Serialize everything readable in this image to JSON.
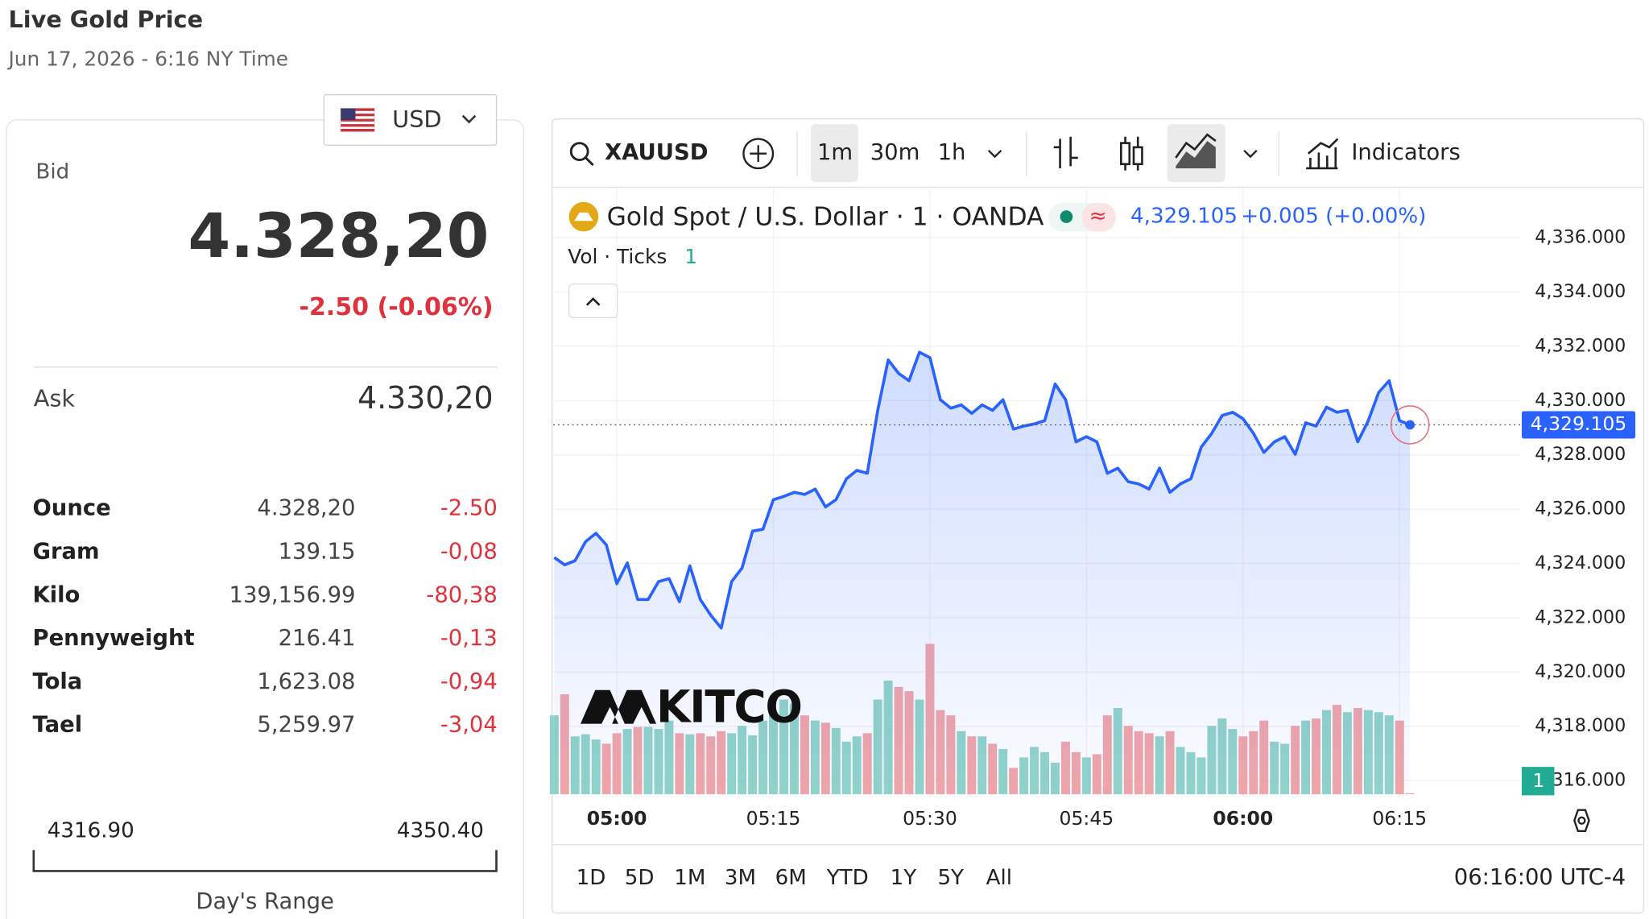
{
  "header": {
    "title": "Live Gold Price",
    "subtitle": "Jun 17, 2026 - 6:16 NY Time"
  },
  "currency": "USD",
  "bid": {
    "label": "Bid",
    "value": "4.328,20",
    "change": "-2.50 (-0.06%)"
  },
  "ask": {
    "label": "Ask",
    "value": "4.330,20"
  },
  "table": {
    "rows": [
      [
        "Ounce",
        "4.328,20",
        "-2.50"
      ],
      [
        "Gram",
        "139.15",
        "-0,08"
      ],
      [
        "Kilo",
        "139,156.99",
        "-80,38"
      ],
      [
        "Pennyweight",
        "216.41",
        "-0,13"
      ],
      [
        "Tola",
        "1,623.08",
        "-0,94"
      ],
      [
        "Tael",
        "5,259.97",
        "-3,04"
      ]
    ]
  },
  "range": {
    "low": "4316.90",
    "high": "4350.40",
    "label": "Day's Range"
  },
  "toolbar": {
    "symbol": "XAUUSD",
    "intervals": [
      "1m",
      "30m",
      "1h"
    ],
    "indicators": "Indicators"
  },
  "ranges": [
    "1D",
    "5D",
    "1M",
    "3M",
    "6M",
    "YTD",
    "1Y",
    "5Y",
    "All"
  ],
  "clock": "06:16:00 UTC-4",
  "watermark": "KITCO",
  "chart_data": {
    "type": "line",
    "x": [
      "04:54",
      "04:55",
      "04:56",
      "04:57",
      "04:58",
      "04:59",
      "05:00",
      "05:01",
      "05:02",
      "05:03",
      "05:04",
      "05:05",
      "05:06",
      "05:07",
      "05:08",
      "05:09",
      "05:10",
      "05:11",
      "05:12",
      "05:13",
      "05:14",
      "05:15",
      "05:16",
      "05:17",
      "05:18",
      "05:19",
      "05:20",
      "05:21",
      "05:22",
      "05:23",
      "05:24",
      "05:25",
      "05:26",
      "05:27",
      "05:28",
      "05:29",
      "05:30",
      "05:31",
      "05:32",
      "05:33",
      "05:34",
      "05:35",
      "05:36",
      "05:37",
      "05:38",
      "05:39",
      "05:40",
      "05:41",
      "05:42",
      "05:43",
      "05:44",
      "05:45",
      "05:46",
      "05:47",
      "05:48",
      "05:49",
      "05:50",
      "05:51",
      "05:52",
      "05:53",
      "05:54",
      "05:55",
      "05:56",
      "05:57",
      "05:58",
      "05:59",
      "06:00",
      "06:01",
      "06:02",
      "06:03",
      "06:04",
      "06:05",
      "06:06",
      "06:07",
      "06:08",
      "06:09",
      "06:10",
      "06:11",
      "06:12",
      "06:13",
      "06:14",
      "06:15",
      "06:16"
    ],
    "xlim": [
      "04:54",
      "06:26"
    ],
    "xticks": [
      "05:00",
      "05:15",
      "05:30",
      "05:45",
      "06:00",
      "06:15"
    ],
    "ylim": [
      4315.42,
      4337.78
    ],
    "yticks": [
      {
        "value": 4316,
        "label": "4,316.000"
      },
      {
        "value": 4318,
        "label": "4,318.000"
      },
      {
        "value": 4320,
        "label": "4,320.000"
      },
      {
        "value": 4322,
        "label": "4,322.000"
      },
      {
        "value": 4324,
        "label": "4,324.000"
      },
      {
        "value": 4326,
        "label": "4,326.000"
      },
      {
        "value": 4328,
        "label": "4,328.000"
      },
      {
        "value": 4330,
        "label": "4,330.000"
      },
      {
        "value": 4332,
        "label": "4,332.000"
      },
      {
        "value": 4334,
        "label": "4,334.000"
      },
      {
        "value": 4336,
        "label": "4,336.000"
      }
    ],
    "grid": true,
    "last_label": "4,329.105",
    "change_label": "+0.005 (+0.00%)",
    "series": [
      {
        "name": "Gold Spot / U.S. Dollar · 1 · OANDA",
        "color": "#2962ff",
        "values": [
          4324.22,
          4323.95,
          4324.1,
          4324.8,
          4325.11,
          4324.68,
          4323.25,
          4324.02,
          4322.67,
          4322.67,
          4323.33,
          4323.44,
          4322.59,
          4323.91,
          4322.67,
          4322.09,
          4321.62,
          4323.33,
          4323.83,
          4325.19,
          4325.26,
          4326.35,
          4326.47,
          4326.62,
          4326.54,
          4326.74,
          4326.08,
          4326.35,
          4327.12,
          4327.43,
          4327.32,
          4329.64,
          4331.5,
          4331.0,
          4330.73,
          4331.78,
          4331.58,
          4330.03,
          4329.72,
          4329.84,
          4329.53,
          4329.84,
          4329.64,
          4330.03,
          4328.95,
          4329.06,
          4329.14,
          4329.26,
          4330.61,
          4330.03,
          4328.48,
          4328.67,
          4328.48,
          4327.32,
          4327.51,
          4327.01,
          4326.93,
          4326.74,
          4327.51,
          4326.62,
          4326.93,
          4327.12,
          4328.29,
          4328.79,
          4329.45,
          4329.57,
          4329.33,
          4328.79,
          4328.09,
          4328.48,
          4328.67,
          4328.02,
          4329.18,
          4329.06,
          4329.76,
          4329.57,
          4329.64,
          4328.48,
          4329.26,
          4330.3,
          4330.73,
          4329.26,
          4329.105
        ]
      },
      {
        "name": "Vol · Ticks",
        "up_color": "#92d4c9",
        "down_color": "#f2a6a9",
        "values": [
          75,
          95,
          55,
          57,
          52,
          48,
          58,
          62,
          64,
          64,
          62,
          70,
          58,
          57,
          58,
          55,
          60,
          58,
          65,
          56,
          70,
          78,
          90,
          86,
          75,
          70,
          68,
          63,
          50,
          55,
          58,
          90,
          108,
          102,
          98,
          90,
          143,
          80,
          75,
          60,
          55,
          55,
          48,
          43,
          25,
          35,
          45,
          40,
          30,
          50,
          40,
          35,
          38,
          75,
          82,
          65,
          60,
          58,
          55,
          60,
          45,
          40,
          35,
          65,
          72,
          62,
          55,
          60,
          70,
          50,
          48,
          65,
          70,
          72,
          80,
          85,
          78,
          82,
          80,
          78,
          75,
          70,
          1
        ]
      }
    ]
  }
}
